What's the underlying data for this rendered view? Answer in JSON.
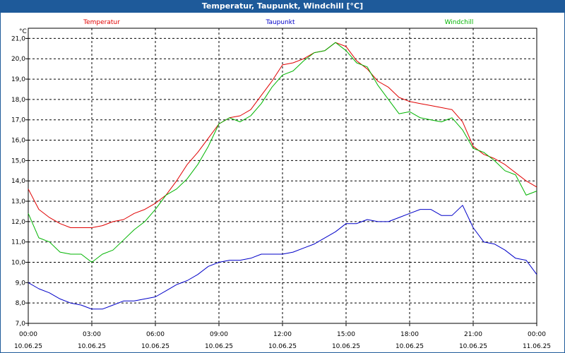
{
  "window": {
    "title": "Temperatur, Taupunkt, Windchill [°C]"
  },
  "colors": {
    "temperatur": "#e00000",
    "taupunkt": "#0000c8",
    "windchill": "#00b400",
    "titlebar": "#1e5a9a"
  },
  "chart_data": {
    "type": "line",
    "title": "Temperatur, Taupunkt, Windchill [°C]",
    "ylabel": "°C",
    "xlabel": "",
    "ylim": [
      7.0,
      21.5
    ],
    "xlim_hours": [
      0,
      24
    ],
    "grid": true,
    "legend_placement": "top",
    "y_ticks": [
      "7,0",
      "8,0",
      "9,0",
      "10,0",
      "11,0",
      "12,0",
      "13,0",
      "14,0",
      "15,0",
      "16,0",
      "17,0",
      "18,0",
      "19,0",
      "20,0",
      "21,0"
    ],
    "x_ticks": [
      {
        "time": "00:00",
        "date": "10.06.25"
      },
      {
        "time": "03:00",
        "date": "10.06.25"
      },
      {
        "time": "06:00",
        "date": "10.06.25"
      },
      {
        "time": "09:00",
        "date": "10.06.25"
      },
      {
        "time": "12:00",
        "date": "10.06.25"
      },
      {
        "time": "15:00",
        "date": "10.06.25"
      },
      {
        "time": "18:00",
        "date": "10.06.25"
      },
      {
        "time": "21:00",
        "date": "10.06.25"
      },
      {
        "time": "00:00",
        "date": "11.06.25"
      }
    ],
    "series": [
      {
        "name": "Temperatur",
        "color": "#e00000",
        "x": [
          "00:00",
          "00:30",
          "01:00",
          "01:30",
          "02:00",
          "02:30",
          "03:00",
          "03:30",
          "04:00",
          "04:30",
          "05:00",
          "05:30",
          "06:00",
          "06:30",
          "07:00",
          "07:30",
          "08:00",
          "08:30",
          "09:00",
          "09:30",
          "10:00",
          "10:30",
          "11:00",
          "11:30",
          "12:00",
          "12:30",
          "13:00",
          "13:30",
          "14:00",
          "14:30",
          "15:00",
          "15:30",
          "16:00",
          "16:30",
          "17:00",
          "17:30",
          "18:00",
          "18:30",
          "19:00",
          "19:30",
          "20:00",
          "20:30",
          "21:00",
          "21:30",
          "22:00",
          "22:30",
          "23:00",
          "23:30",
          "24:00"
        ],
        "values": [
          13.6,
          12.6,
          12.2,
          11.9,
          11.7,
          11.7,
          11.7,
          11.8,
          12.0,
          12.1,
          12.4,
          12.6,
          12.9,
          13.3,
          14.0,
          14.8,
          15.4,
          16.1,
          16.8,
          17.1,
          17.2,
          17.5,
          18.2,
          18.9,
          19.7,
          19.8,
          20.0,
          20.3,
          20.4,
          20.8,
          20.6,
          19.9,
          19.5,
          18.9,
          18.6,
          18.1,
          17.9,
          17.8,
          17.7,
          17.6,
          17.5,
          16.9,
          15.7,
          15.3,
          15.1,
          14.8,
          14.4,
          14.0,
          13.7
        ]
      },
      {
        "name": "Taupunkt",
        "color": "#0000c8",
        "x": [
          "00:00",
          "00:30",
          "01:00",
          "01:30",
          "02:00",
          "02:30",
          "03:00",
          "03:30",
          "04:00",
          "04:30",
          "05:00",
          "05:30",
          "06:00",
          "06:30",
          "07:00",
          "07:30",
          "08:00",
          "08:30",
          "09:00",
          "09:30",
          "10:00",
          "10:30",
          "11:00",
          "11:30",
          "12:00",
          "12:30",
          "13:00",
          "13:30",
          "14:00",
          "14:30",
          "15:00",
          "15:30",
          "16:00",
          "16:30",
          "17:00",
          "17:30",
          "18:00",
          "18:30",
          "19:00",
          "19:30",
          "20:00",
          "20:30",
          "21:00",
          "21:30",
          "22:00",
          "22:30",
          "23:00",
          "23:30",
          "24:00"
        ],
        "values": [
          9.0,
          8.7,
          8.5,
          8.2,
          8.0,
          7.9,
          7.7,
          7.7,
          7.9,
          8.1,
          8.1,
          8.2,
          8.3,
          8.6,
          8.9,
          9.1,
          9.4,
          9.8,
          10.0,
          10.1,
          10.1,
          10.2,
          10.4,
          10.4,
          10.4,
          10.5,
          10.7,
          10.9,
          11.2,
          11.5,
          11.9,
          11.9,
          12.1,
          12.0,
          12.0,
          12.2,
          12.4,
          12.6,
          12.6,
          12.3,
          12.3,
          12.8,
          11.7,
          11.0,
          10.9,
          10.6,
          10.2,
          10.1,
          9.4
        ]
      },
      {
        "name": "Windchill",
        "color": "#00b400",
        "x": [
          "00:00",
          "00:30",
          "01:00",
          "01:30",
          "02:00",
          "02:30",
          "03:00",
          "03:30",
          "04:00",
          "04:30",
          "05:00",
          "05:30",
          "06:00",
          "06:30",
          "07:00",
          "07:30",
          "08:00",
          "08:30",
          "09:00",
          "09:30",
          "10:00",
          "10:30",
          "11:00",
          "11:30",
          "12:00",
          "12:30",
          "13:00",
          "13:30",
          "14:00",
          "14:30",
          "15:00",
          "15:30",
          "16:00",
          "16:30",
          "17:00",
          "17:30",
          "18:00",
          "18:30",
          "19:00",
          "19:30",
          "20:00",
          "20:30",
          "21:00",
          "21:30",
          "22:00",
          "22:30",
          "23:00",
          "23:30",
          "24:00"
        ],
        "values": [
          12.4,
          11.2,
          11.0,
          10.5,
          10.4,
          10.4,
          10.0,
          10.4,
          10.6,
          11.1,
          11.6,
          12.0,
          12.6,
          13.3,
          13.6,
          14.1,
          14.8,
          15.7,
          16.8,
          17.1,
          16.9,
          17.2,
          17.8,
          18.6,
          19.2,
          19.4,
          19.9,
          20.3,
          20.4,
          20.8,
          20.4,
          19.8,
          19.6,
          18.7,
          18.0,
          17.3,
          17.4,
          17.1,
          17.0,
          16.9,
          17.1,
          16.5,
          15.6,
          15.4,
          15.0,
          14.5,
          14.3,
          13.3,
          13.5
        ]
      }
    ]
  }
}
